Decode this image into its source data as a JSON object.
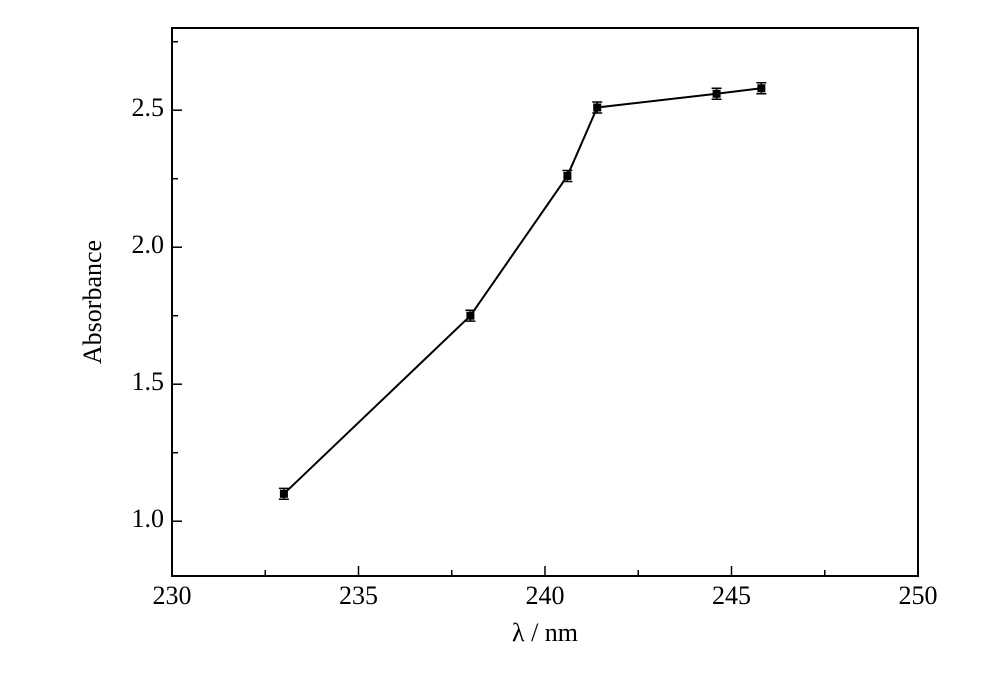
{
  "chart_data": {
    "type": "line",
    "xlabel": "λ / nm",
    "ylabel": "Absorbance",
    "x": [
      233.0,
      238.0,
      240.6,
      241.4,
      244.6,
      245.8
    ],
    "series": [
      {
        "color": "#000000",
        "values": [
          1.1,
          1.75,
          2.26,
          2.51,
          2.56,
          2.58
        ],
        "errors": [
          0.02,
          0.02,
          0.02,
          0.02,
          0.02,
          0.02
        ]
      }
    ],
    "xlim": [
      230,
      250
    ],
    "xticks": [
      230,
      235,
      240,
      245,
      250
    ],
    "xminorticks": [
      232.5,
      237.5,
      242.5,
      247.5
    ],
    "ylim": [
      0.8,
      2.8
    ],
    "yticks": [
      {
        "value": 1,
        "label": "1.0"
      },
      1.5,
      {
        "value": 2,
        "label": "2.0"
      },
      2.5
    ],
    "yminorticks": [
      1.25,
      1.75,
      2.25,
      2.75
    ],
    "grid": false
  }
}
